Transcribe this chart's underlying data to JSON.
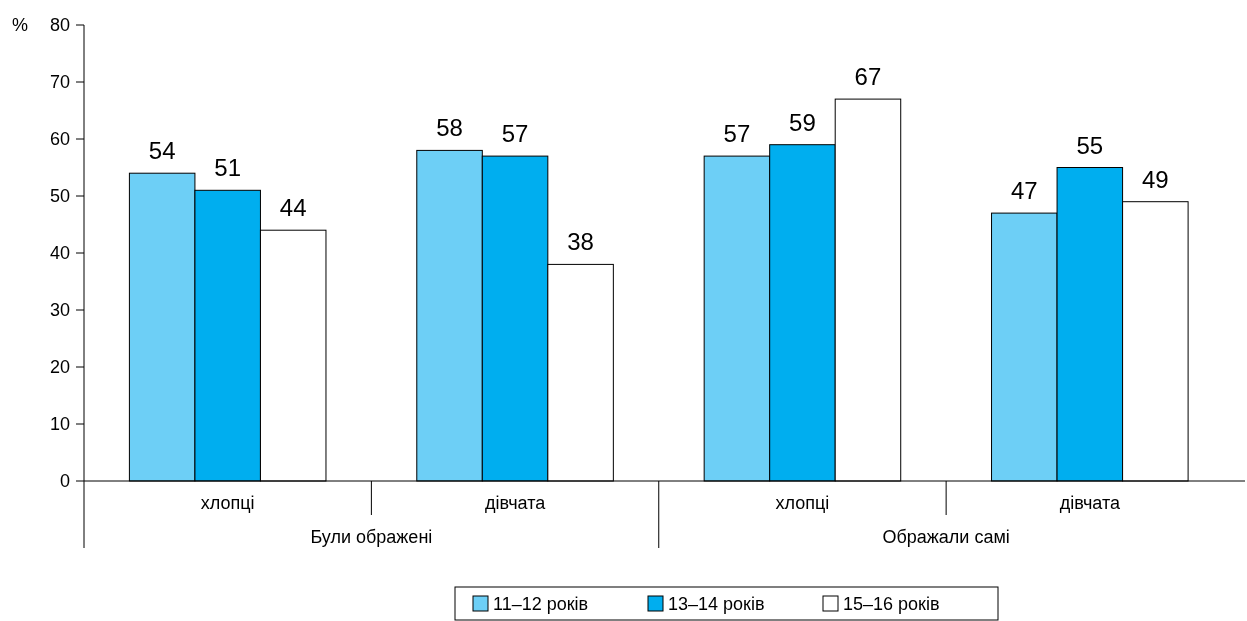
{
  "chart_data": {
    "type": "bar",
    "ylabel": "%",
    "categories": [
      "хлопці",
      "дівчата",
      "хлопці",
      "дівчата"
    ],
    "annotations": [
      "Були ображені",
      "Ображали самі"
    ],
    "series": [
      {
        "name": "11–12 років",
        "color": "#6dcff6",
        "values": [
          54,
          58,
          57,
          47
        ]
      },
      {
        "name": "13–14 років",
        "color": "#00aeef",
        "values": [
          51,
          57,
          59,
          55
        ]
      },
      {
        "name": "15–16 років",
        "color": "#ffffff",
        "values": [
          44,
          38,
          67,
          49
        ]
      }
    ],
    "ylim": [
      0,
      80
    ],
    "yticks": [
      0,
      10,
      20,
      30,
      40,
      50,
      60,
      70,
      80
    ],
    "data_labels": true,
    "grid": false,
    "legend": "bottom"
  }
}
